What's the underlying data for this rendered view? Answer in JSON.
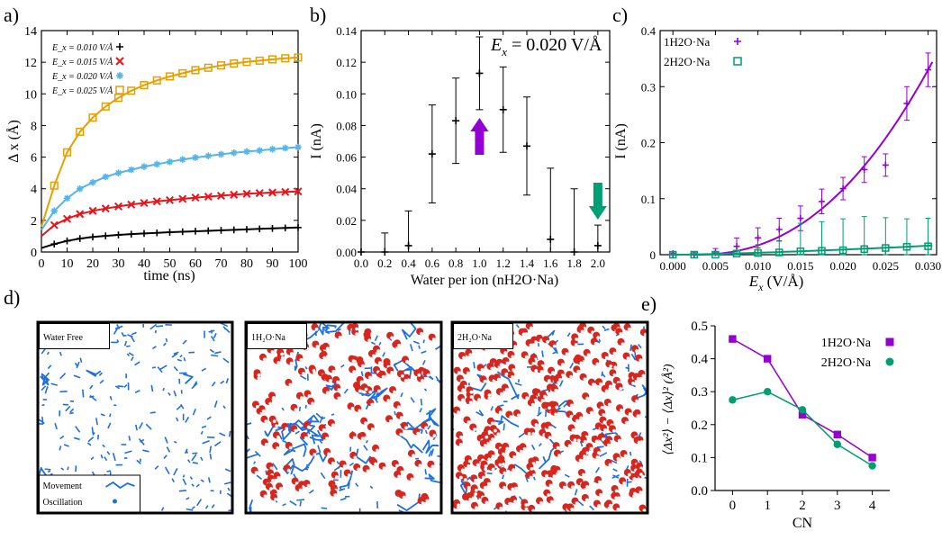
{
  "colors": {
    "black": "#000000",
    "red": "#e8141c",
    "sky": "#56b4e9",
    "orange": "#e69f00",
    "purple": "#9400d3",
    "green": "#009e73",
    "blue": "#1e6fe0",
    "o_red": "#d7261e"
  },
  "panels": {
    "a": "a)",
    "b": "b)",
    "c": "c)",
    "d": "d)",
    "e": "e)"
  },
  "chart_data": [
    {
      "panel": "a",
      "type": "line",
      "xlabel": "time (ns)",
      "ylabel": "Δ x (Å)",
      "xlim": [
        0,
        100
      ],
      "ylim": [
        0,
        14
      ],
      "xticks": [
        "0",
        "10",
        "20",
        "30",
        "40",
        "50",
        "60",
        "70",
        "80",
        "90",
        "100"
      ],
      "yticks": [
        "0",
        "2",
        "4",
        "6",
        "8",
        "10",
        "12",
        "14"
      ],
      "x": [
        0,
        5,
        10,
        15,
        20,
        25,
        30,
        35,
        40,
        45,
        50,
        55,
        60,
        65,
        70,
        75,
        80,
        85,
        90,
        95,
        100
      ],
      "series": [
        {
          "name": "Ex = 0.010 V/Å",
          "label": "E_x = 0.010 V/Å",
          "marker": "plus",
          "color": "#000000",
          "values": [
            0.25,
            0.5,
            0.7,
            0.85,
            0.95,
            1.02,
            1.08,
            1.13,
            1.17,
            1.21,
            1.25,
            1.28,
            1.31,
            1.34,
            1.37,
            1.4,
            1.43,
            1.46,
            1.49,
            1.52,
            1.55
          ]
        },
        {
          "name": "Ex = 0.015 V/Å",
          "label": "E_x = 0.015 V/Å",
          "marker": "x",
          "color": "#e8141c",
          "values": [
            1.0,
            1.7,
            2.1,
            2.4,
            2.6,
            2.75,
            2.88,
            3.0,
            3.1,
            3.2,
            3.28,
            3.36,
            3.44,
            3.5,
            3.56,
            3.62,
            3.68,
            3.72,
            3.76,
            3.8,
            3.83
          ]
        },
        {
          "name": "Ex = 0.020 V/Å",
          "label": "E_x = 0.020 V/Å",
          "marker": "star",
          "color": "#56b4e9",
          "values": [
            1.4,
            2.6,
            3.4,
            4.0,
            4.4,
            4.75,
            5.0,
            5.2,
            5.4,
            5.55,
            5.7,
            5.85,
            5.97,
            6.08,
            6.18,
            6.27,
            6.35,
            6.42,
            6.5,
            6.57,
            6.63
          ]
        },
        {
          "name": "Ex = 0.025 V/Å",
          "label": "E_x = 0.025 V/Å",
          "marker": "square",
          "color": "#e69f00",
          "values": [
            1.6,
            4.2,
            6.3,
            7.6,
            8.5,
            9.2,
            9.75,
            10.2,
            10.55,
            10.85,
            11.1,
            11.3,
            11.5,
            11.65,
            11.8,
            11.92,
            12.02,
            12.1,
            12.18,
            12.25,
            12.3
          ]
        }
      ]
    },
    {
      "panel": "b",
      "type": "scatter",
      "xlabel": "Water per ion (nH2O·Na)",
      "ylabel": "I (nA)",
      "xlim": [
        0,
        2.1
      ],
      "ylim": [
        0,
        0.14
      ],
      "xticks": [
        "0.0",
        "0.2",
        "0.4",
        "0.6",
        "0.8",
        "1.0",
        "1.2",
        "1.4",
        "1.6",
        "1.8",
        "2.0"
      ],
      "yticks": [
        "0.00",
        "0.02",
        "0.04",
        "0.06",
        "0.08",
        "0.10",
        "0.12",
        "0.14"
      ],
      "annotation": "E",
      "annotation_sub": "x",
      "annotation_rest": " = 0.020 V/Å",
      "x": [
        0.0,
        0.2,
        0.4,
        0.6,
        0.8,
        1.0,
        1.2,
        1.4,
        1.6,
        1.8,
        2.0
      ],
      "values": [
        0.0,
        0.0,
        0.004,
        0.062,
        0.083,
        0.113,
        0.09,
        0.067,
        0.008,
        0.0,
        0.004
      ],
      "errors": [
        0.0,
        0.012,
        0.022,
        0.031,
        0.027,
        0.023,
        0.027,
        0.031,
        0.045,
        0.04,
        0.013
      ]
    },
    {
      "panel": "c",
      "type": "line",
      "xlabel": "E",
      "xlabel_sub": "x",
      "xlabel_rest": " (V/Å)",
      "ylabel": "I (nA)",
      "xlim": [
        -0.0015,
        0.031
      ],
      "ylim": [
        0,
        0.4
      ],
      "xticks": [
        "0.000",
        "0.005",
        "0.010",
        "0.015",
        "0.020",
        "0.025",
        "0.030"
      ],
      "yticks": [
        "0",
        "0.1",
        "0.2",
        "0.3",
        "0.4"
      ],
      "series": [
        {
          "name": "1H2O·Na",
          "marker": "plus",
          "color": "#9400d3",
          "x": [
            0,
            0.0025,
            0.005,
            0.0075,
            0.01,
            0.0125,
            0.015,
            0.0175,
            0.02,
            0.0225,
            0.025,
            0.0275,
            0.03
          ],
          "values": [
            0,
            0.0,
            0.003,
            0.015,
            0.03,
            0.045,
            0.065,
            0.095,
            0.118,
            0.152,
            0.16,
            0.27,
            0.33
          ],
          "errors": [
            0.003,
            0.005,
            0.008,
            0.015,
            0.018,
            0.02,
            0.022,
            0.022,
            0.02,
            0.023,
            0.02,
            0.03,
            0.03
          ]
        },
        {
          "name": "2H2O·Na",
          "marker": "square",
          "color": "#009e73",
          "x": [
            0,
            0.0025,
            0.005,
            0.0075,
            0.01,
            0.0125,
            0.015,
            0.0175,
            0.02,
            0.0225,
            0.025,
            0.0275,
            0.03
          ],
          "values": [
            0,
            0,
            0,
            0.002,
            0.003,
            0.004,
            0.006,
            0.007,
            0.008,
            0.01,
            0.012,
            0.014,
            0.015
          ],
          "errors": [
            0.002,
            0.003,
            0.004,
            0.006,
            0.015,
            0.02,
            0.05,
            0.052,
            0.056,
            0.058,
            0.054,
            0.05,
            0.05
          ]
        }
      ]
    },
    {
      "panel": "e",
      "type": "line",
      "xlabel": "CN",
      "ylabel": "⟨Δx²⟩ − ⟨Δx⟩² (Å²)",
      "xlim": [
        -0.5,
        4.5
      ],
      "ylim": [
        0,
        0.5
      ],
      "xticks": [
        "0",
        "1",
        "2",
        "3",
        "4"
      ],
      "yticks": [
        "0.0",
        "0.1",
        "0.2",
        "0.3",
        "0.4",
        "0.5"
      ],
      "x": [
        0,
        1,
        2,
        3,
        4
      ],
      "series": [
        {
          "name": "1H2O·Na",
          "marker": "square",
          "color": "#9400d3",
          "values": [
            0.46,
            0.4,
            0.23,
            0.17,
            0.1
          ]
        },
        {
          "name": "2H2O·Na",
          "marker": "circle",
          "color": "#009e73",
          "values": [
            0.275,
            0.3,
            0.245,
            0.14,
            0.075
          ]
        }
      ]
    }
  ],
  "snapshots": [
    {
      "label": "Water Free",
      "waters": 0,
      "movement": 0.05
    },
    {
      "label": "1H₂O·Na",
      "waters": 1,
      "movement": 0.45
    },
    {
      "label": "2H₂O·Na",
      "waters": 2,
      "movement": 0.15
    }
  ],
  "legend_d": {
    "movement": "Movement",
    "oscillation": "Oscillation"
  }
}
